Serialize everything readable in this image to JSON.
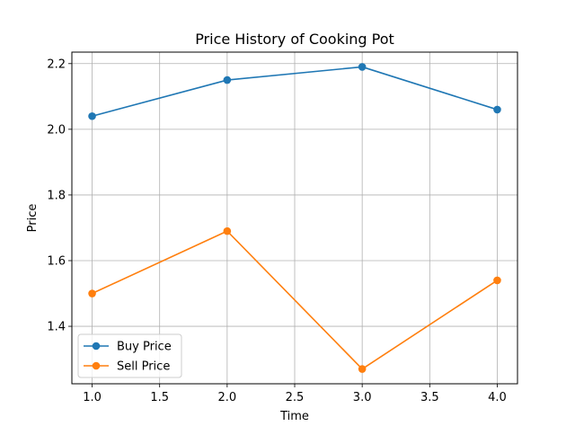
{
  "chart_data": {
    "type": "line",
    "title": "Price History of Cooking Pot",
    "xlabel": "Time",
    "ylabel": "Price",
    "x": [
      1.0,
      2.0,
      3.0,
      4.0
    ],
    "series": [
      {
        "name": "Buy Price",
        "values": [
          2.04,
          2.15,
          2.19,
          2.06
        ],
        "color": "#1f77b4"
      },
      {
        "name": "Sell Price",
        "values": [
          1.5,
          1.69,
          1.27,
          1.54
        ],
        "color": "#ff7f0e"
      }
    ],
    "xlim": [
      0.85,
      4.15
    ],
    "ylim": [
      1.225,
      2.235
    ],
    "xticks": [
      "1.0",
      "1.5",
      "2.0",
      "2.5",
      "3.0",
      "3.5",
      "4.0"
    ],
    "yticks": [
      "1.4",
      "1.6",
      "1.8",
      "2.0",
      "2.2"
    ],
    "grid": true,
    "legend_position": "lower-left"
  }
}
